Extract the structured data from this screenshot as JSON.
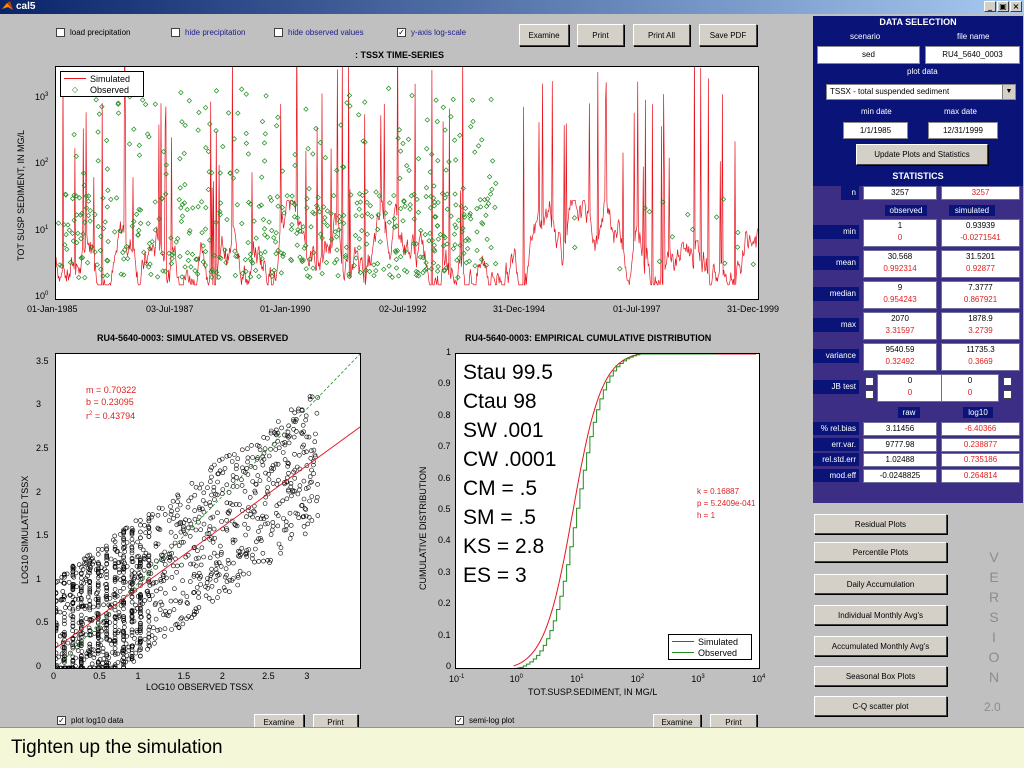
{
  "window": {
    "title": "cal5"
  },
  "top_options": {
    "load_precip": {
      "label": "load precipitation",
      "checked": false
    },
    "hide_precip": {
      "label": "hide precipitation",
      "checked": false
    },
    "hide_obs": {
      "label": "hide observed values",
      "checked": false
    },
    "log_scale": {
      "label": "y-axis log-scale",
      "checked": true
    }
  },
  "top_buttons": {
    "examine": "Examine",
    "print": "Print",
    "print_all": "Print All",
    "save_pdf": "Save PDF"
  },
  "timeseries": {
    "title": ": TSSX TIME-SERIES",
    "ylabel": "TOT SUSP SEDIMENT, IN MG/L",
    "yticks": [
      "10",
      "10",
      "10",
      "10"
    ],
    "yexp": [
      "3",
      "2",
      "1",
      "0"
    ],
    "xticks": [
      "01-Jan-1985",
      "03-Jul-1987",
      "01-Jan-1990",
      "02-Jul-1992",
      "31-Dec-1994",
      "01-Jul-1997",
      "31-Dec-1999"
    ],
    "legend": [
      "Simulated",
      "Observed"
    ]
  },
  "scatter": {
    "title": "RU4-5640-0003: SIMULATED VS. OBSERVED",
    "xlabel": "LOG10 OBSERVED TSSX",
    "ylabel": "LOG10 SIMULATED TSSX",
    "xticks": [
      "0",
      "0.5",
      "1",
      "1.5",
      "2",
      "2.5",
      "3"
    ],
    "yticks": [
      "3.5",
      "3",
      "2.5",
      "2",
      "1.5",
      "1",
      "0.5",
      "0"
    ],
    "m": "m = 0.70322",
    "b": "b = 0.23095",
    "r2_prefix": "r",
    "r2_sup": "2",
    "r2_value": " = 0.43794"
  },
  "cdf": {
    "title": "RU4-5640-0003: EMPIRICAL CUMULATIVE DISTRIBUTION",
    "xlabel": "TOT.SUSP.SEDIMENT, IN MG/L",
    "ylabel": "CUMULATIVE DISTRIBUTION",
    "yticks": [
      "1",
      "0.9",
      "0.8",
      "0.7",
      "0.6",
      "0.5",
      "0.4",
      "0.3",
      "0.2",
      "0.1",
      "0"
    ],
    "xbase": [
      "10",
      "10",
      "10",
      "10",
      "10",
      "10"
    ],
    "xexp": [
      "-1",
      "0",
      "1",
      "2",
      "3",
      "4"
    ],
    "k": "k = 0.16887",
    "p": "p = 5.2409e-041",
    "h": "h = 1",
    "legend": [
      "Simulated",
      "Observed"
    ],
    "params": [
      "Stau 99.5",
      "Ctau 98",
      "SW .001",
      "CW .0001",
      "CM = .5",
      "SM = .5",
      "KS = 2.8",
      "ES = 3"
    ]
  },
  "bottom_left": {
    "plot_log10": {
      "label": "plot log10 data",
      "checked": true
    },
    "examine": "Examine",
    "print": "Print"
  },
  "bottom_mid": {
    "semilog": {
      "label": "semi-log plot",
      "checked": true
    },
    "examine": "Examine",
    "print": "Print"
  },
  "data_selection": {
    "header": "DATA SELECTION",
    "scenario_label": "scenario",
    "file_label": "file name",
    "scenario": "sed",
    "file": "RU4_5640_0003",
    "plot_data_label": "plot data",
    "plot_data": "TSSX  -  total suspended sediment",
    "min_date_label": "min date",
    "max_date_label": "max date",
    "min_date": "1/1/1985",
    "max_date": "12/31/1999",
    "update_button": "Update Plots and Statistics"
  },
  "statistics": {
    "header": "STATISTICS",
    "n_label": "n",
    "n_obs": "3257",
    "n_sim": "3257",
    "col_observed": "observed",
    "col_simulated": "simulated",
    "rows": [
      {
        "label": "min",
        "obs": "1",
        "obs_r": "0",
        "sim": "0.93939",
        "sim_r": "-0.0271541"
      },
      {
        "label": "mean",
        "obs": "30.568",
        "obs_r": "0.992314",
        "sim": "31.5201",
        "sim_r": "0.92877"
      },
      {
        "label": "median",
        "obs": "9",
        "obs_r": "0.954243",
        "sim": "7.3777",
        "sim_r": "0.867921"
      },
      {
        "label": "max",
        "obs": "2070",
        "obs_r": "3.31597",
        "sim": "1878.9",
        "sim_r": "3.2739"
      },
      {
        "label": "variance",
        "obs": "9540.59",
        "obs_r": "0.32492",
        "sim": "11735.3",
        "sim_r": "0.3669"
      },
      {
        "label": "JB test",
        "obs": "0",
        "obs_r": "0",
        "sim": "0",
        "sim_r": "0"
      }
    ],
    "col_raw": "raw",
    "col_log10": "log10",
    "rows2": [
      {
        "label": "% rel.bias",
        "raw": "3.11456",
        "log": "-6.40366"
      },
      {
        "label": "err.var.",
        "raw": "9777.98",
        "log": "0.238877"
      },
      {
        "label": "rel.std.err",
        "raw": "1.02488",
        "log": "0.735186"
      },
      {
        "label": "mod.eff",
        "raw": "-0.0248825",
        "log": "0.264814"
      }
    ]
  },
  "side_buttons": [
    "Residual Plots",
    "Percentile Plots",
    "Daily Accumulation",
    "Individual Monthly Avg's",
    "Accumulated Monthly Avg's",
    "Seasonal Box Plots",
    "C-Q scatter plot"
  ],
  "version": {
    "letters": [
      "V",
      "E",
      "R",
      "S",
      "I",
      "O",
      "N"
    ],
    "number": "2.0"
  },
  "caption": "Tighten up the simulation",
  "colors": {
    "simulated": "#e8141e",
    "observed": "#1e8c1e",
    "panel": "#0a1478",
    "stats_bg": "#3c2d85"
  }
}
